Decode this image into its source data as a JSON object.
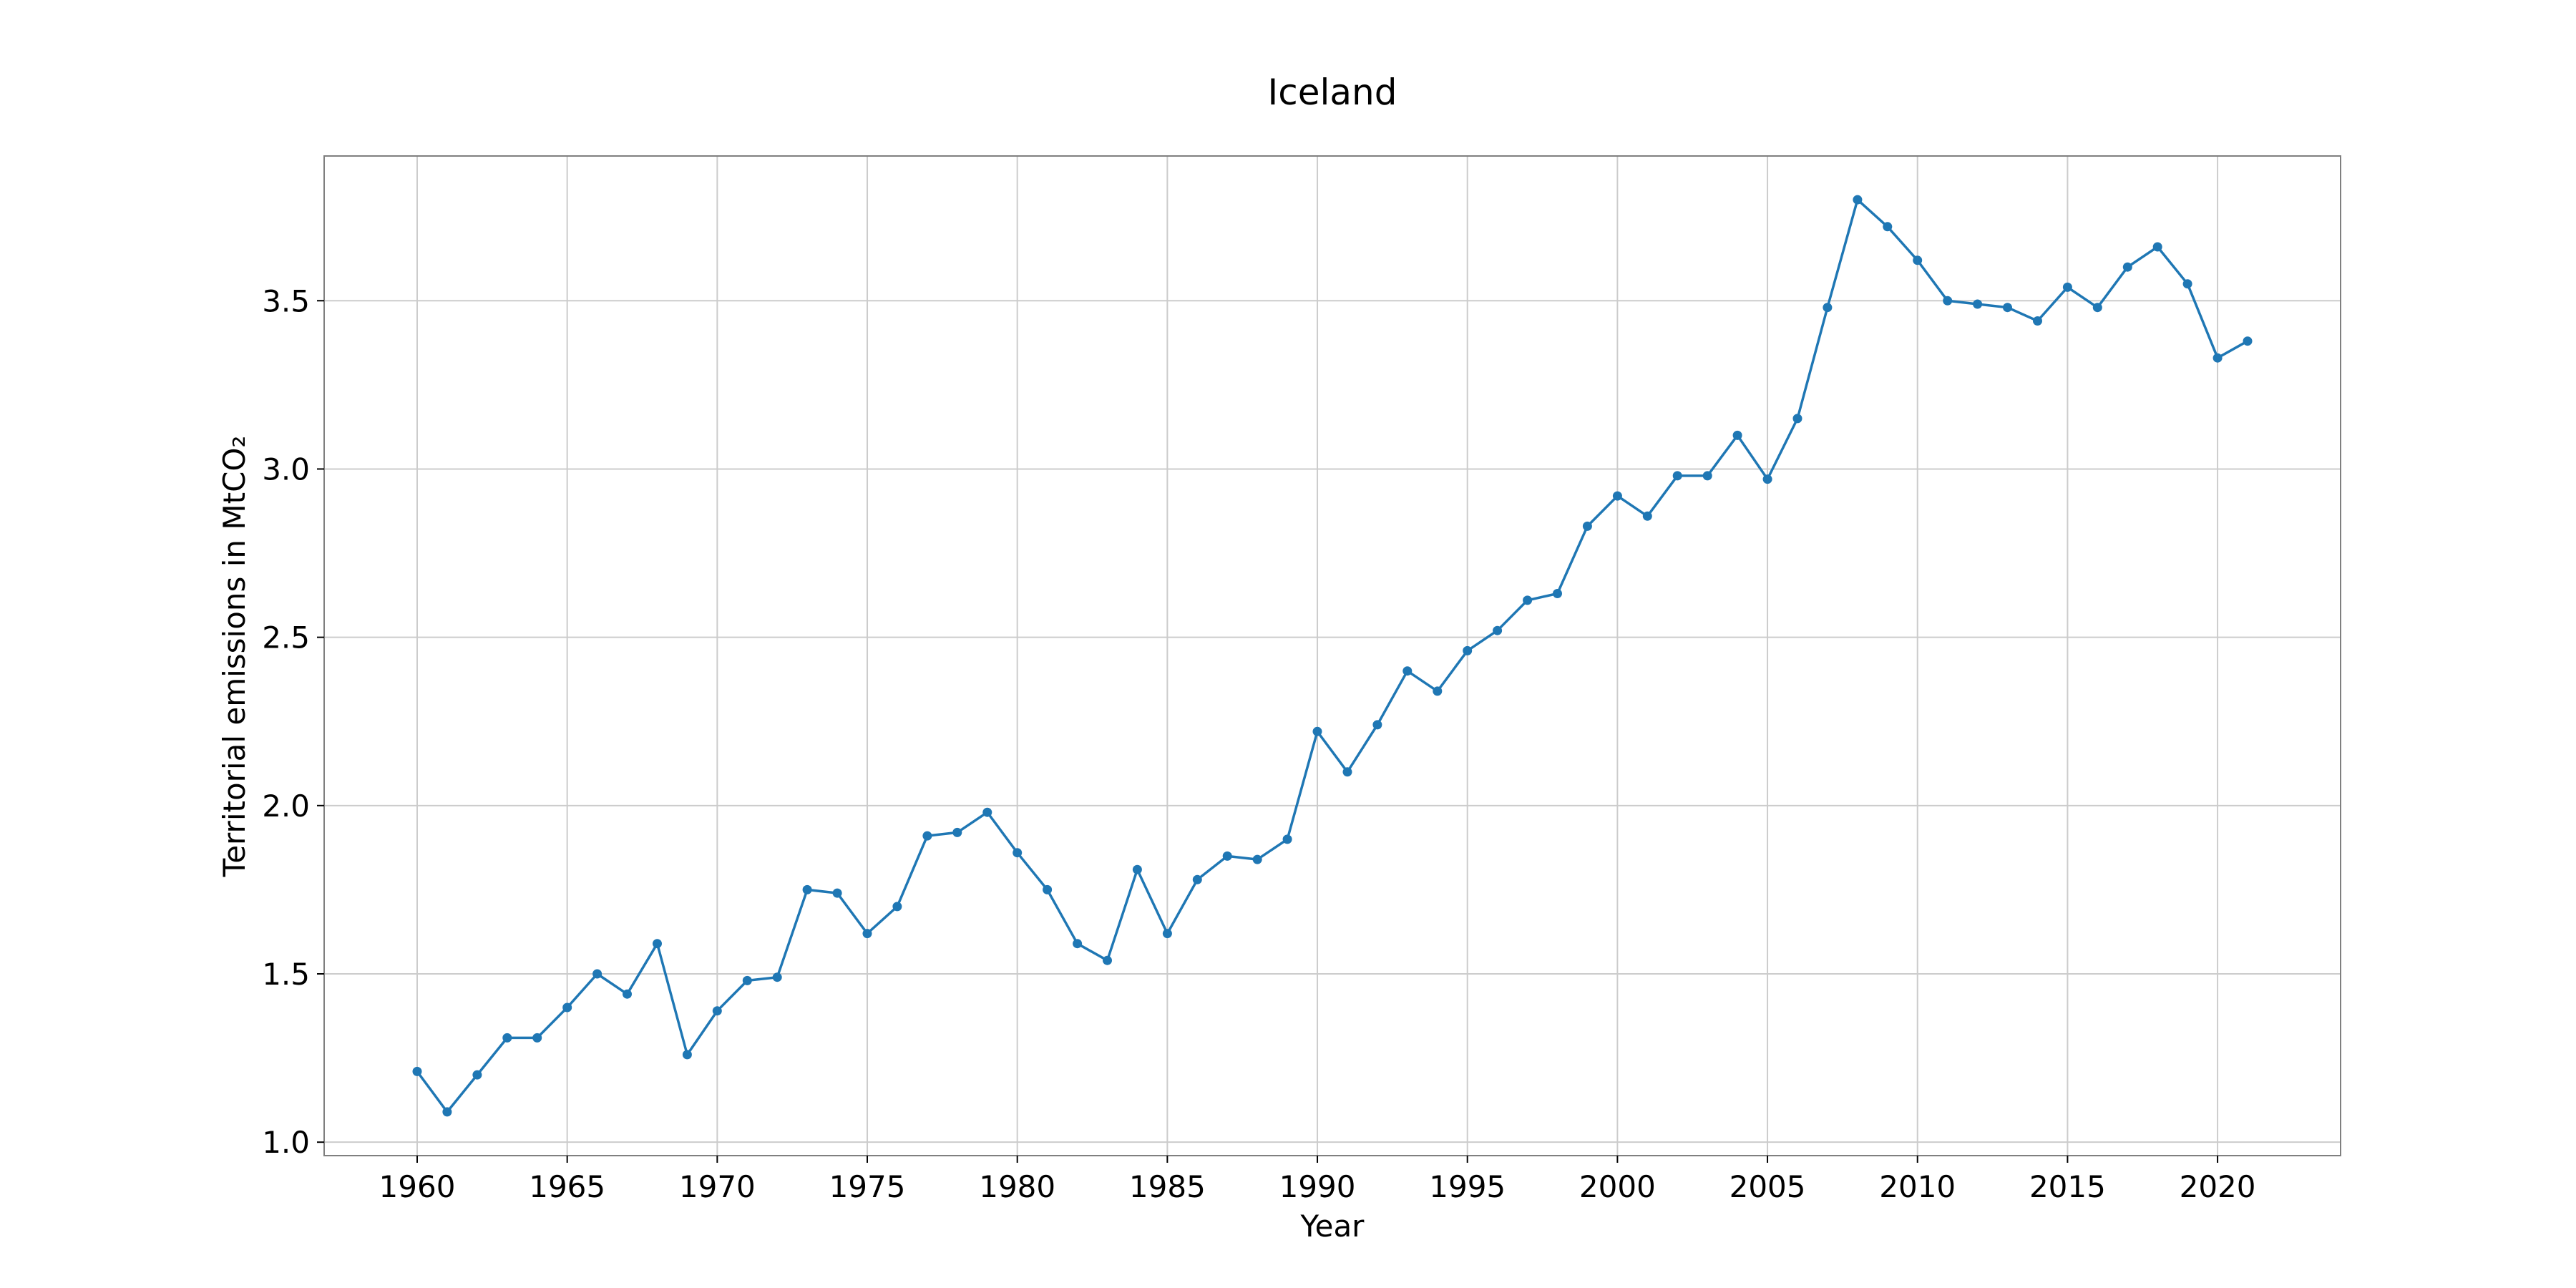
{
  "chart_data": {
    "type": "line",
    "title": "Iceland",
    "xlabel": "Year",
    "ylabel": "Territorial emissions in MtCO₂",
    "xlim": [
      1956.9,
      2024.1
    ],
    "ylim": [
      0.96,
      3.93
    ],
    "xticks": [
      1960,
      1965,
      1970,
      1975,
      1980,
      1985,
      1990,
      1995,
      2000,
      2005,
      2010,
      2015,
      2020
    ],
    "xtick_labels": [
      "1960",
      "1965",
      "1970",
      "1975",
      "1980",
      "1985",
      "1990",
      "1995",
      "2000",
      "2005",
      "2010",
      "2015",
      "2020"
    ],
    "yticks": [
      1.0,
      1.5,
      2.0,
      2.5,
      3.0,
      3.5
    ],
    "ytick_labels": [
      "1.0",
      "1.5",
      "2.0",
      "2.5",
      "3.0",
      "3.5"
    ],
    "grid": true,
    "color": "#1f77b4",
    "series": [
      {
        "x": [
          1960,
          1961,
          1962,
          1963,
          1964,
          1965,
          1966,
          1967,
          1968,
          1969,
          1970,
          1971,
          1972,
          1973,
          1974,
          1975,
          1976,
          1977,
          1978,
          1979,
          1980,
          1981,
          1982,
          1983,
          1984,
          1985,
          1986,
          1987,
          1988,
          1989,
          1990,
          1991,
          1992,
          1993,
          1994,
          1995,
          1996,
          1997,
          1998,
          1999,
          2000,
          2001,
          2002,
          2003,
          2004,
          2005,
          2006,
          2007,
          2008,
          2009,
          2010,
          2011,
          2012,
          2013,
          2014,
          2015,
          2016,
          2017,
          2018,
          2019,
          2020,
          2021
        ],
        "y": [
          1.21,
          1.09,
          1.2,
          1.31,
          1.31,
          1.4,
          1.5,
          1.44,
          1.59,
          1.26,
          1.39,
          1.48,
          1.49,
          1.75,
          1.74,
          1.62,
          1.7,
          1.91,
          1.92,
          1.98,
          1.86,
          1.75,
          1.59,
          1.54,
          1.81,
          1.62,
          1.78,
          1.85,
          1.84,
          1.9,
          2.22,
          2.1,
          2.24,
          2.4,
          2.34,
          2.46,
          2.52,
          2.61,
          2.63,
          2.83,
          2.92,
          2.86,
          2.98,
          2.98,
          3.1,
          2.97,
          3.15,
          3.48,
          3.8,
          3.72,
          3.62,
          3.5,
          3.49,
          3.48,
          3.44,
          3.54,
          3.48,
          3.6,
          3.66,
          3.55,
          3.33,
          3.38
        ]
      }
    ]
  }
}
